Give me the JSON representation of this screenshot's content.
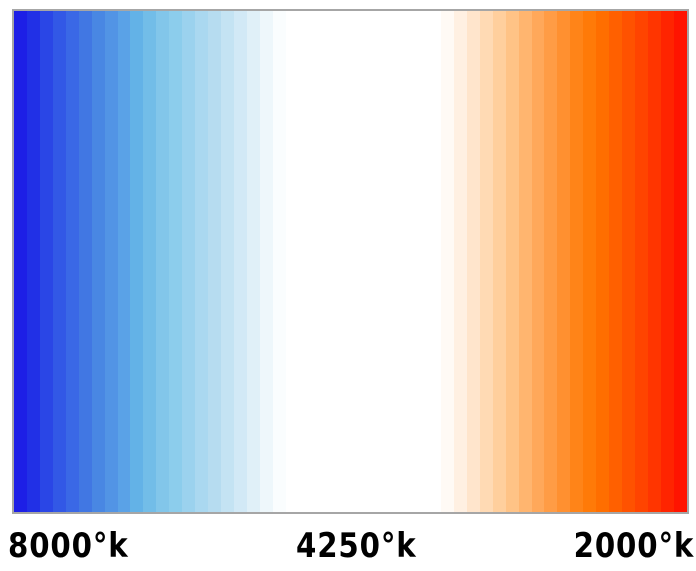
{
  "labels": {
    "left": "8000°k",
    "center": "4250°k",
    "right": "2000°k"
  },
  "colors": {
    "border": "#a6a6a6",
    "stripes": [
      "#1d1fe6",
      "#2130e6",
      "#2a46e6",
      "#3258e6",
      "#3a68e6",
      "#4177e3",
      "#4987e3",
      "#5294e5",
      "#5aa2e7",
      "#63b2e7",
      "#72bde8",
      "#82c6ea",
      "#8ccdec",
      "#9bd2ee",
      "#aad8f0",
      "#b6dcf0",
      "#c4e3f3",
      "#d2e9f6",
      "#e0f0f8",
      "#eef7fb",
      "#fafdfe",
      "#ffffff",
      "#ffffff",
      "#ffffff",
      "#ffffff",
      "#ffffff",
      "#ffffff",
      "#ffffff",
      "#ffffff",
      "#ffffff",
      "#ffffff",
      "#ffffff",
      "#ffffff",
      "#fffaf5",
      "#fff0e2",
      "#ffe5cc",
      "#ffdab4",
      "#ffcf9d",
      "#ffc386",
      "#ffb56f",
      "#ffa85a",
      "#ff9c45",
      "#ff9030",
      "#ff8418",
      "#ff7a08",
      "#ff6e00",
      "#ff6000",
      "#ff5200",
      "#ff4400",
      "#ff3500",
      "#ff2400",
      "#ff1400"
    ]
  }
}
